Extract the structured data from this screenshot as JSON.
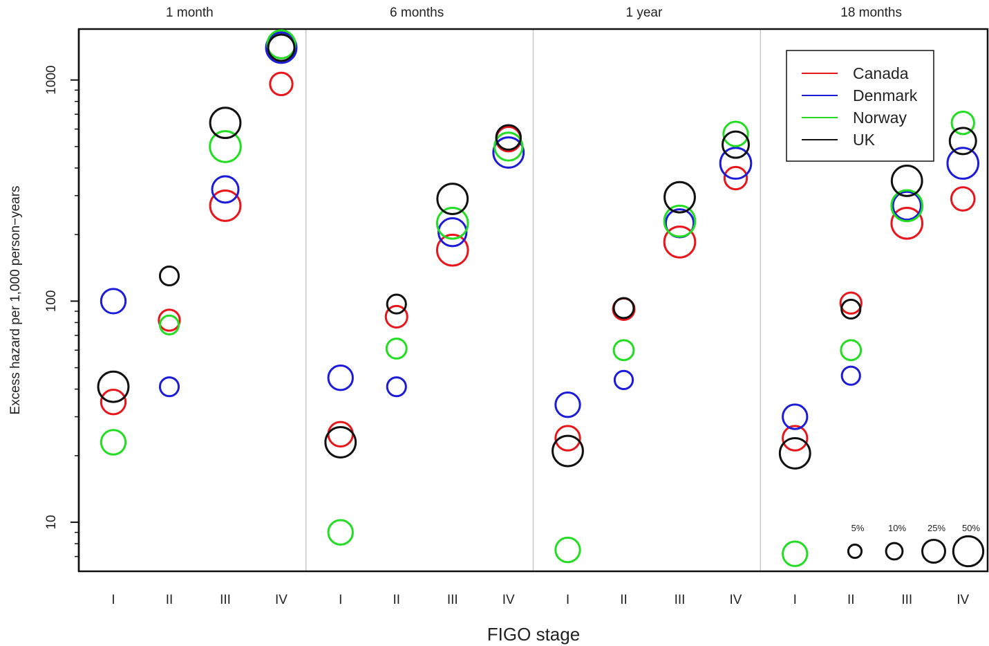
{
  "chart_data": {
    "type": "scatter",
    "panels": [
      "1 month",
      "6 months",
      "1 year",
      "18 months"
    ],
    "categories": [
      "I",
      "II",
      "III",
      "IV"
    ],
    "xlabel": "FIGO stage",
    "ylabel": "Excess hazard per 1,000 person−years",
    "yscale": "log",
    "ylim": [
      6,
      1700
    ],
    "yticks": [
      10,
      100,
      1000
    ],
    "yticklabels": [
      "10",
      "100",
      "1000"
    ],
    "legend": {
      "position": "top-right"
    },
    "series": [
      {
        "name": "Canada",
        "color": "#e8151b",
        "points": [
          [
            {
              "y": 35,
              "p": 0.2
            },
            {
              "y": 82,
              "p": 0.12
            },
            {
              "y": 270,
              "p": 0.38
            },
            {
              "y": 960,
              "p": 0.15
            }
          ],
          [
            {
              "y": 25,
              "p": 0.2
            },
            {
              "y": 85,
              "p": 0.13
            },
            {
              "y": 170,
              "p": 0.4
            },
            {
              "y": 540,
              "p": 0.2
            }
          ],
          [
            {
              "y": 24,
              "p": 0.2
            },
            {
              "y": 92,
              "p": 0.13
            },
            {
              "y": 185,
              "p": 0.4
            },
            {
              "y": 360,
              "p": 0.15
            }
          ],
          [
            {
              "y": 24,
              "p": 0.2
            },
            {
              "y": 98,
              "p": 0.12
            },
            {
              "y": 225,
              "p": 0.4
            },
            {
              "y": 290,
              "p": 0.17
            }
          ]
        ]
      },
      {
        "name": "Denmark",
        "color": "#1b1bd9",
        "points": [
          [
            {
              "y": 100,
              "p": 0.2
            },
            {
              "y": 41,
              "p": 0.08
            },
            {
              "y": 320,
              "p": 0.25
            },
            {
              "y": 1400,
              "p": 0.38
            }
          ],
          [
            {
              "y": 45,
              "p": 0.2
            },
            {
              "y": 41,
              "p": 0.08
            },
            {
              "y": 205,
              "p": 0.3
            },
            {
              "y": 470,
              "p": 0.38
            }
          ],
          [
            {
              "y": 34,
              "p": 0.2
            },
            {
              "y": 44,
              "p": 0.07
            },
            {
              "y": 225,
              "p": 0.3
            },
            {
              "y": 420,
              "p": 0.4
            }
          ],
          [
            {
              "y": 30,
              "p": 0.2
            },
            {
              "y": 46,
              "p": 0.07
            },
            {
              "y": 270,
              "p": 0.3
            },
            {
              "y": 420,
              "p": 0.4
            }
          ]
        ]
      },
      {
        "name": "Norway",
        "color": "#22dd22",
        "points": [
          [
            {
              "y": 23,
              "p": 0.2
            },
            {
              "y": 78,
              "p": 0.08
            },
            {
              "y": 500,
              "p": 0.4
            },
            {
              "y": 1450,
              "p": 0.3
            }
          ],
          [
            {
              "y": 9,
              "p": 0.2
            },
            {
              "y": 61,
              "p": 0.1
            },
            {
              "y": 225,
              "p": 0.4
            },
            {
              "y": 500,
              "p": 0.3
            }
          ],
          [
            {
              "y": 7.5,
              "p": 0.2
            },
            {
              "y": 60,
              "p": 0.1
            },
            {
              "y": 230,
              "p": 0.4
            },
            {
              "y": 570,
              "p": 0.2
            }
          ],
          [
            {
              "y": 7.2,
              "p": 0.2
            },
            {
              "y": 60,
              "p": 0.1
            },
            {
              "y": 270,
              "p": 0.4
            },
            {
              "y": 640,
              "p": 0.15
            }
          ]
        ]
      },
      {
        "name": "UK",
        "color": "#111111",
        "points": [
          [
            {
              "y": 41,
              "p": 0.38
            },
            {
              "y": 130,
              "p": 0.08
            },
            {
              "y": 640,
              "p": 0.38
            },
            {
              "y": 1400,
              "p": 0.25
            }
          ],
          [
            {
              "y": 23,
              "p": 0.38
            },
            {
              "y": 97,
              "p": 0.08
            },
            {
              "y": 290,
              "p": 0.38
            },
            {
              "y": 550,
              "p": 0.2
            }
          ],
          [
            {
              "y": 21,
              "p": 0.38
            },
            {
              "y": 93,
              "p": 0.1
            },
            {
              "y": 295,
              "p": 0.38
            },
            {
              "y": 510,
              "p": 0.25
            }
          ],
          [
            {
              "y": 20.5,
              "p": 0.38
            },
            {
              "y": 92,
              "p": 0.08
            },
            {
              "y": 350,
              "p": 0.38
            },
            {
              "y": 530,
              "p": 0.25
            }
          ]
        ]
      }
    ],
    "size_legend": {
      "labels": [
        "5%",
        "10%",
        "25%",
        "50%"
      ],
      "values": [
        0.05,
        0.1,
        0.25,
        0.5
      ]
    }
  }
}
